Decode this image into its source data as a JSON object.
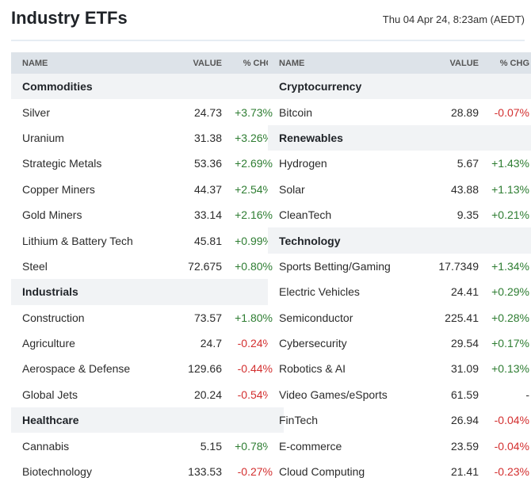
{
  "page": {
    "title": "Industry ETFs",
    "timestamp": "Thu 04 Apr 24, 8:23am (AEDT)"
  },
  "headers": {
    "name": "NAME",
    "value": "VALUE",
    "chg": "% CHG"
  },
  "left": [
    {
      "group": "Commodities",
      "rows": [
        {
          "name": "Silver",
          "value": "24.73",
          "chg": "+3.73%",
          "dir": "pos"
        },
        {
          "name": "Uranium",
          "value": "31.38",
          "chg": "+3.26%",
          "dir": "pos"
        },
        {
          "name": "Strategic Metals",
          "value": "53.36",
          "chg": "+2.69%",
          "dir": "pos"
        },
        {
          "name": "Copper Miners",
          "value": "44.37",
          "chg": "+2.54%",
          "dir": "pos"
        },
        {
          "name": "Gold Miners",
          "value": "33.14",
          "chg": "+2.16%",
          "dir": "pos"
        },
        {
          "name": "Lithium & Battery Tech",
          "value": "45.81",
          "chg": "+0.99%",
          "dir": "pos"
        },
        {
          "name": "Steel",
          "value": "72.675",
          "chg": "+0.80%",
          "dir": "pos"
        }
      ]
    },
    {
      "group": "Industrials",
      "rows": [
        {
          "name": "Construction",
          "value": "73.57",
          "chg": "+1.80%",
          "dir": "pos"
        },
        {
          "name": "Agriculture",
          "value": "24.7",
          "chg": "-0.24%",
          "dir": "neg"
        },
        {
          "name": "Aerospace & Defense",
          "value": "129.66",
          "chg": "-0.44%",
          "dir": "neg"
        },
        {
          "name": "Global Jets",
          "value": "20.24",
          "chg": "-0.54%",
          "dir": "neg"
        }
      ]
    },
    {
      "group": "Healthcare",
      "rows": [
        {
          "name": "Cannabis",
          "value": "5.15",
          "chg": "+0.78%",
          "dir": "pos"
        },
        {
          "name": "Biotechnology",
          "value": "133.53",
          "chg": "-0.27%",
          "dir": "neg"
        }
      ]
    }
  ],
  "right": [
    {
      "group": "Cryptocurrency",
      "rows": [
        {
          "name": "Bitcoin",
          "value": "28.89",
          "chg": "-0.07%",
          "dir": "neg"
        }
      ]
    },
    {
      "group": "Renewables",
      "rows": [
        {
          "name": "Hydrogen",
          "value": "5.67",
          "chg": "+1.43%",
          "dir": "pos"
        },
        {
          "name": "Solar",
          "value": "43.88",
          "chg": "+1.13%",
          "dir": "pos"
        },
        {
          "name": "CleanTech",
          "value": "9.35",
          "chg": "+0.21%",
          "dir": "pos"
        }
      ]
    },
    {
      "group": "Technology",
      "rows": [
        {
          "name": "Sports Betting/Gaming",
          "value": "17.7349",
          "chg": "+1.34%",
          "dir": "pos"
        },
        {
          "name": "Electric Vehicles",
          "value": "24.41",
          "chg": "+0.29%",
          "dir": "pos"
        },
        {
          "name": "Semiconductor",
          "value": "225.41",
          "chg": "+0.28%",
          "dir": "pos"
        },
        {
          "name": "Cybersecurity",
          "value": "29.54",
          "chg": "+0.17%",
          "dir": "pos"
        },
        {
          "name": "Robotics & AI",
          "value": "31.09",
          "chg": "+0.13%",
          "dir": "pos"
        },
        {
          "name": "Video Games/eSports",
          "value": "61.59",
          "chg": "-",
          "dir": "flat"
        },
        {
          "name": "FinTech",
          "value": "26.94",
          "chg": "-0.04%",
          "dir": "neg"
        },
        {
          "name": "E-commerce",
          "value": "23.59",
          "chg": "-0.04%",
          "dir": "neg"
        },
        {
          "name": "Cloud Computing",
          "value": "21.41",
          "chg": "-0.23%",
          "dir": "neg"
        }
      ]
    }
  ],
  "colors": {
    "positive": "#2e7d32",
    "negative": "#d32f2f",
    "header_bg": "#dde3e9",
    "group_bg": "#f1f3f5"
  }
}
